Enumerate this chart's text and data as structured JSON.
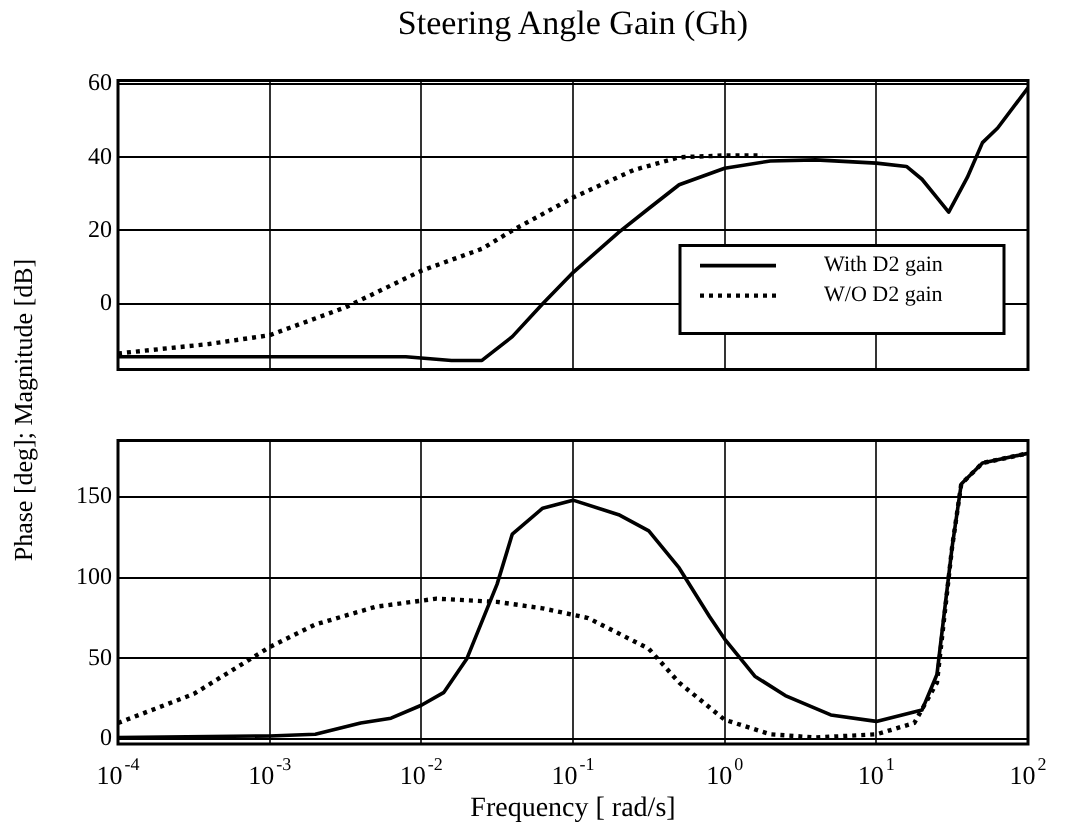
{
  "chart_data": [
    {
      "type": "line",
      "title": "Steering Angle Gain (Gh)",
      "ylabel": "Phase [deg]; Magnitude [dB]",
      "log": "x",
      "grid": true,
      "legend": "bottom right",
      "marker": "none",
      "tick_labels": "y",
      "xlim": [
        0.0001,
        100
      ],
      "xticks": [
        {
          "value": 0.0001,
          "label": null
        },
        {
          "value": 0.001,
          "label": null
        },
        {
          "value": 0.01,
          "label": null
        },
        {
          "value": 0.1,
          "label": null
        },
        {
          "value": 1,
          "label": null
        },
        {
          "value": 10,
          "label": null
        },
        {
          "value": 100,
          "label": null
        }
      ],
      "ylim": [
        -18,
        61
      ],
      "yticks": [
        0,
        20,
        40,
        60
      ],
      "series": [
        {
          "name": "With D2 gain",
          "color": "#000000",
          "line_style": "solid",
          "x": [
            0.0001,
            0.001,
            0.0079,
            0.0158,
            0.0251,
            0.0398,
            0.0631,
            0.1,
            0.2,
            0.316,
            0.501,
            1,
            2,
            3.98,
            10,
            15.8,
            20,
            25.1,
            30,
            39.8,
            50.1,
            63.1,
            100
          ],
          "values": [
            -14.5,
            -14.5,
            -14.5,
            -15.5,
            -15.5,
            -9,
            0,
            8.5,
            19.5,
            26,
            32.5,
            37,
            39,
            39.3,
            38.4,
            37.5,
            34,
            29,
            25,
            34.5,
            44,
            48,
            59
          ]
        },
        {
          "name": "W/O D2 gain",
          "color": "#000000",
          "line_style": "dotted",
          "x": [
            0.0001,
            0.000398,
            0.001,
            0.00316,
            0.00501,
            0.01,
            0.0251,
            0.0398,
            0.1,
            0.251,
            0.501,
            1,
            1.78
          ],
          "values": [
            -13.6,
            -11,
            -8.6,
            -1,
            3,
            9,
            15,
            20,
            29,
            36.5,
            40,
            40.5,
            40.5
          ]
        }
      ]
    },
    {
      "type": "line",
      "xlabel": "Frequency [ rad/s]",
      "log": "x",
      "grid": true,
      "marker": "none",
      "xlim": [
        0.0001,
        100
      ],
      "xticks": [
        {
          "value": 0.0001,
          "label": "10$^{-4}$"
        },
        {
          "value": 0.001,
          "label": "10$^{-3}$"
        },
        {
          "value": 0.01,
          "label": "10$^{-2}$"
        },
        {
          "value": 0.1,
          "label": "10$^{-1}$"
        },
        {
          "value": 1,
          "label": "10$^{0}$"
        },
        {
          "value": 10,
          "label": "10$^{1}$"
        },
        {
          "value": 100,
          "label": "10$^{2}$"
        }
      ],
      "ylim": [
        -3,
        185
      ],
      "yticks": [
        0,
        50,
        100,
        150
      ],
      "series": [
        {
          "color": "#000000",
          "line_style": "solid",
          "x": [
            0.0001,
            0.001,
            0.002,
            0.00398,
            0.00631,
            0.01,
            0.0141,
            0.02,
            0.0316,
            0.0398,
            0.0631,
            0.1,
            0.2,
            0.316,
            0.501,
            0.794,
            1,
            1.58,
            2.51,
            5.01,
            10,
            20,
            25.1,
            31.6,
            36.3,
            50.1,
            100
          ],
          "values": [
            1,
            2,
            3,
            10,
            13,
            21,
            29,
            50,
            96,
            127,
            143,
            148,
            139,
            129,
            106,
            76,
            62,
            39,
            27,
            15,
            11,
            18,
            40,
            119,
            158,
            171,
            177
          ]
        },
        {
          "color": "#000000",
          "line_style": "dotted",
          "x": [
            0.0001,
            0.000316,
            0.001,
            0.002,
            0.00501,
            0.0126,
            0.0316,
            0.0631,
            0.126,
            0.316,
            0.501,
            1,
            2,
            3.98,
            10,
            17.8,
            25.1,
            31.6,
            36.3,
            50.1,
            100
          ],
          "values": [
            10,
            28,
            57,
            71,
            82,
            87,
            85,
            81,
            75,
            56,
            35,
            12,
            3,
            1,
            3,
            10,
            35,
            119,
            158,
            171,
            177
          ]
        }
      ]
    }
  ]
}
